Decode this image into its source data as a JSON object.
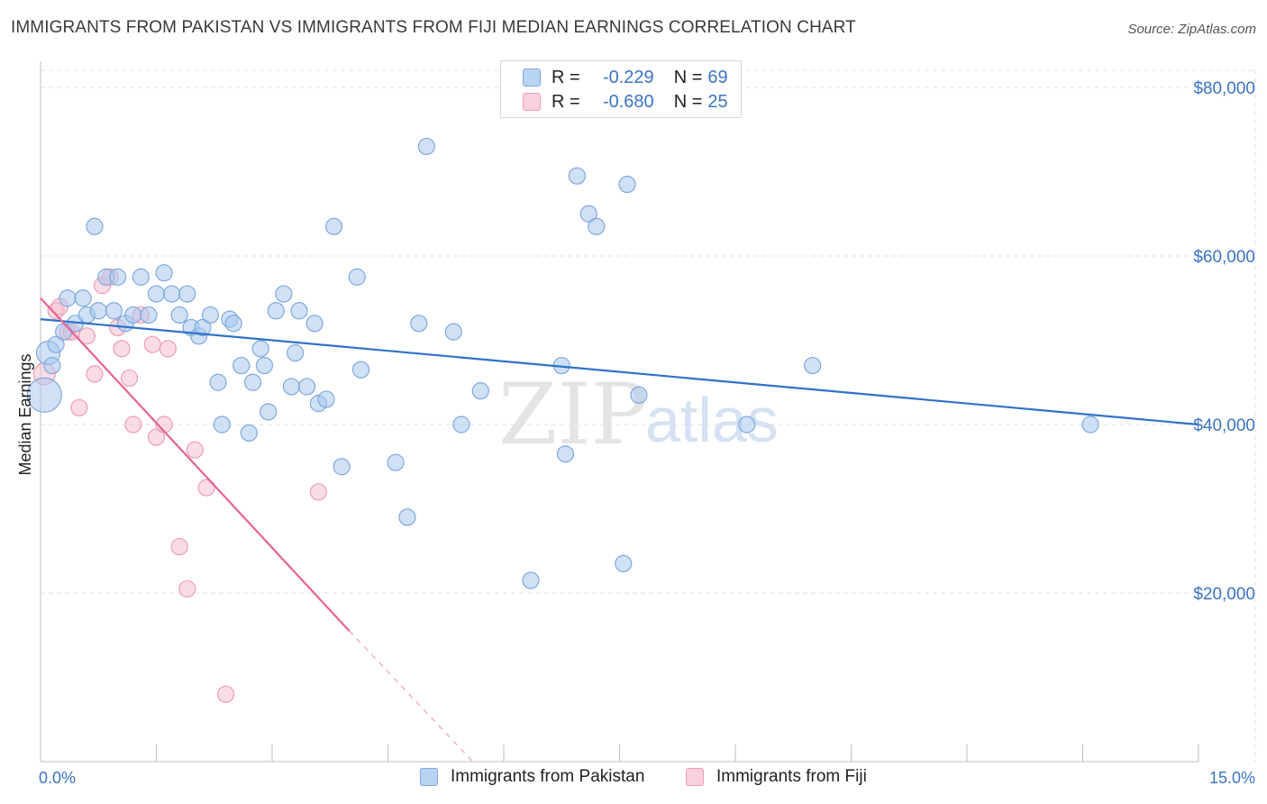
{
  "title": "IMMIGRANTS FROM PAKISTAN VS IMMIGRANTS FROM FIJI MEDIAN EARNINGS CORRELATION CHART",
  "source": "Source: ZipAtlas.com",
  "watermark": {
    "zip": "ZIP",
    "atlas": "atlas"
  },
  "legend": {
    "r_label": "R =",
    "n_label": "N =",
    "pakistan": {
      "r": "-0.229",
      "n": "69"
    },
    "fiji": {
      "r": "-0.680",
      "n": "25"
    }
  },
  "colors": {
    "pakistan_fill": "#a9c8ef",
    "pakistan_stroke": "#7ea8dc",
    "pakistan_line": "#2f72c9",
    "fiji_fill": "#f6bfd0",
    "fiji_stroke": "#ee9db6",
    "fiji_line": "#e8638e",
    "axis_text": "#3a74c4",
    "grid": "#e2e2e2"
  },
  "chart_data": {
    "type": "scatter",
    "title": "IMMIGRANTS FROM PAKISTAN VS IMMIGRANTS FROM FIJI MEDIAN EARNINGS CORRELATION CHART",
    "xlabel": "",
    "ylabel": "Median Earnings",
    "xlim": [
      0,
      15
    ],
    "ylim": [
      0,
      84000
    ],
    "x_tick_labels": [
      "0.0%",
      "15.0%"
    ],
    "y_ticks": [
      20000,
      40000,
      60000,
      80000
    ],
    "y_tick_labels": [
      "$20,000",
      "$40,000",
      "$60,000",
      "$80,000"
    ],
    "grid": true,
    "legend_position": "bottom",
    "series": [
      {
        "name": "Immigrants from Pakistan",
        "points": [
          [
            0.05,
            43500
          ],
          [
            0.1,
            48500
          ],
          [
            0.2,
            49500
          ],
          [
            0.3,
            51000
          ],
          [
            0.35,
            55000
          ],
          [
            0.45,
            52000
          ],
          [
            0.55,
            55000
          ],
          [
            0.6,
            53000
          ],
          [
            0.7,
            63500
          ],
          [
            0.75,
            53500
          ],
          [
            0.85,
            57500
          ],
          [
            0.95,
            53500
          ],
          [
            1.0,
            57500
          ],
          [
            1.1,
            52000
          ],
          [
            1.2,
            53000
          ],
          [
            1.3,
            57500
          ],
          [
            1.4,
            53000
          ],
          [
            1.5,
            55500
          ],
          [
            1.6,
            58000
          ],
          [
            1.7,
            55500
          ],
          [
            1.8,
            53000
          ],
          [
            1.9,
            55500
          ],
          [
            1.95,
            51500
          ],
          [
            2.05,
            50500
          ],
          [
            2.1,
            51500
          ],
          [
            2.2,
            53000
          ],
          [
            2.3,
            45000
          ],
          [
            2.35,
            40000
          ],
          [
            2.45,
            52500
          ],
          [
            2.5,
            52000
          ],
          [
            2.6,
            47000
          ],
          [
            2.7,
            39000
          ],
          [
            2.75,
            45000
          ],
          [
            2.85,
            49000
          ],
          [
            2.9,
            47000
          ],
          [
            2.95,
            41500
          ],
          [
            3.05,
            53500
          ],
          [
            3.15,
            55500
          ],
          [
            3.25,
            44500
          ],
          [
            3.3,
            48500
          ],
          [
            3.35,
            53500
          ],
          [
            3.45,
            44500
          ],
          [
            3.55,
            52000
          ],
          [
            3.6,
            42500
          ],
          [
            3.7,
            43000
          ],
          [
            3.8,
            63500
          ],
          [
            3.9,
            35000
          ],
          [
            4.1,
            57500
          ],
          [
            4.15,
            46500
          ],
          [
            4.6,
            35500
          ],
          [
            4.75,
            29000
          ],
          [
            4.9,
            52000
          ],
          [
            5.0,
            73000
          ],
          [
            5.35,
            51000
          ],
          [
            5.45,
            40000
          ],
          [
            5.7,
            44000
          ],
          [
            6.35,
            21500
          ],
          [
            6.75,
            47000
          ],
          [
            6.8,
            36500
          ],
          [
            6.95,
            69500
          ],
          [
            7.1,
            65000
          ],
          [
            7.2,
            63500
          ],
          [
            7.55,
            23500
          ],
          [
            7.6,
            68500
          ],
          [
            7.75,
            43500
          ],
          [
            9.15,
            40000
          ],
          [
            10.0,
            47000
          ],
          [
            13.6,
            40000
          ],
          [
            0.15,
            47000
          ]
        ],
        "trend": {
          "x": [
            0,
            15
          ],
          "y": [
            52500,
            40000
          ]
        }
      },
      {
        "name": "Immigrants from Fiji",
        "points": [
          [
            0.05,
            46000
          ],
          [
            0.2,
            53500
          ],
          [
            0.25,
            54000
          ],
          [
            0.35,
            51000
          ],
          [
            0.5,
            42000
          ],
          [
            0.6,
            50500
          ],
          [
            0.7,
            46000
          ],
          [
            0.8,
            56500
          ],
          [
            0.9,
            57500
          ],
          [
            1.0,
            51500
          ],
          [
            1.05,
            49000
          ],
          [
            1.15,
            45500
          ],
          [
            1.2,
            40000
          ],
          [
            1.3,
            53000
          ],
          [
            1.45,
            49500
          ],
          [
            1.5,
            38500
          ],
          [
            1.6,
            40000
          ],
          [
            1.65,
            49000
          ],
          [
            1.8,
            25500
          ],
          [
            1.9,
            20500
          ],
          [
            2.0,
            37000
          ],
          [
            2.15,
            32500
          ],
          [
            2.4,
            8000
          ],
          [
            3.6,
            32000
          ],
          [
            0.4,
            51000
          ]
        ],
        "trend": {
          "x": [
            0,
            4.0
          ],
          "y": [
            55000,
            15500
          ]
        },
        "trend_extension": {
          "x": [
            4.0,
            5.6
          ],
          "y": [
            15500,
            0
          ]
        }
      }
    ]
  }
}
